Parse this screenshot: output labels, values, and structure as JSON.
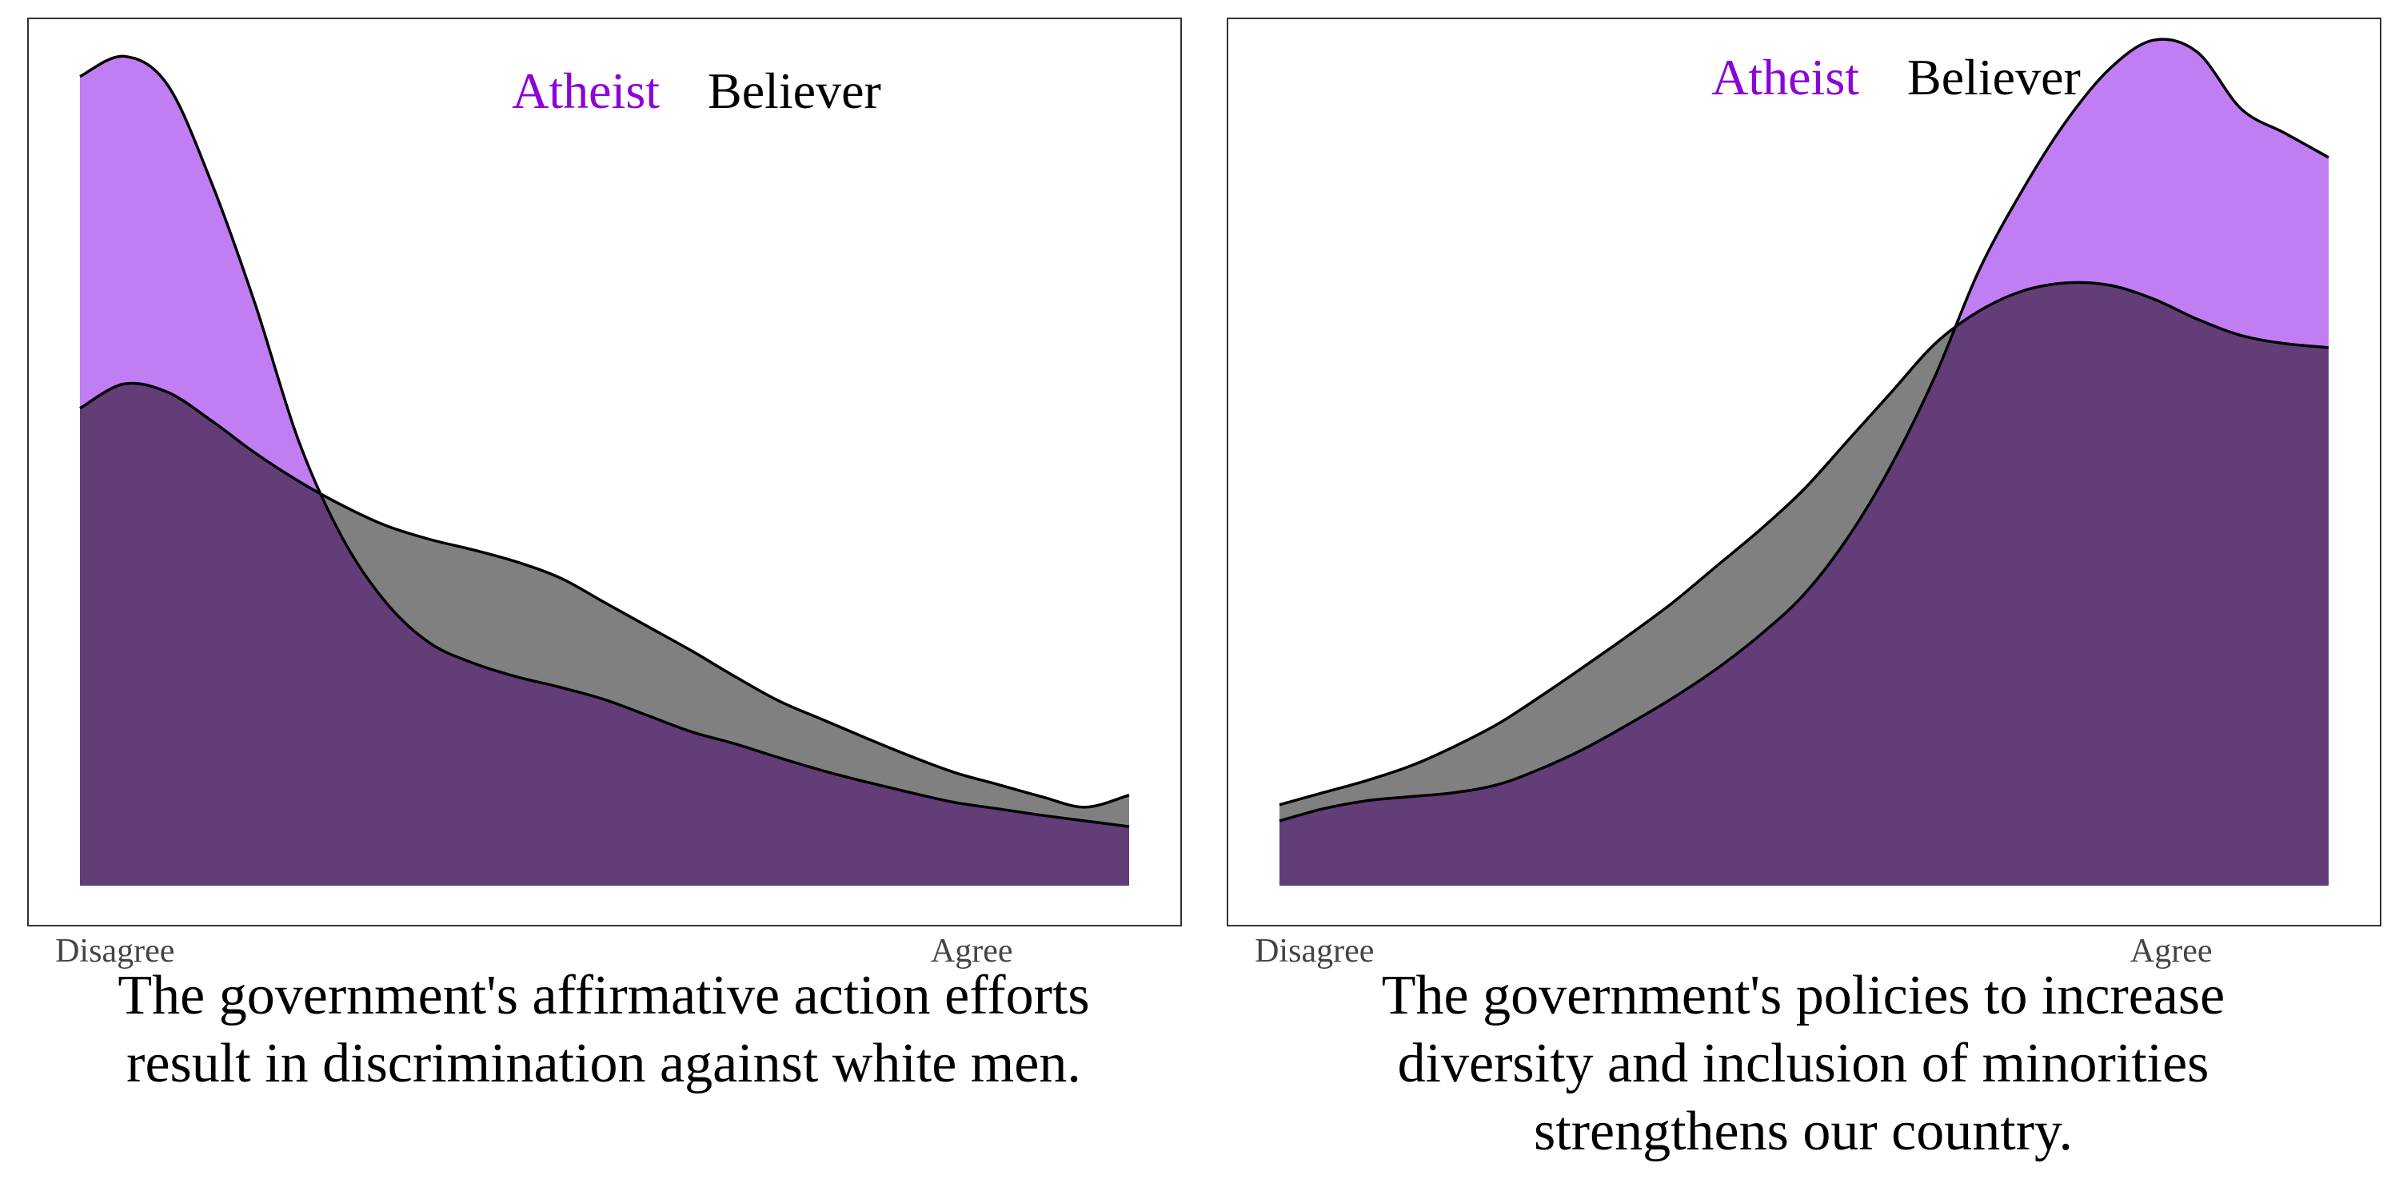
{
  "colors": {
    "atheist_fill": "#c17ef3",
    "believer_fill": "#808080",
    "overlap_fill": "#623d78",
    "atheist_text": "#8a05d6",
    "believer_text": "#000000",
    "outline": "#000000",
    "tick_text": "#444444"
  },
  "chart_data": [
    {
      "type": "area",
      "title": "The government's affirmative action efforts result in discrimination against white men.",
      "title_lines": [
        "The government's affirmative action efforts",
        "result in discrimination against white men."
      ],
      "xlabel": "",
      "ylabel": "",
      "xlim": [
        1,
        7
      ],
      "ylim": [
        0,
        1.06
      ],
      "tick_labels": [
        "Disagree",
        "Agree"
      ],
      "tick_values": [
        1.2,
        6.1
      ],
      "legend": [
        "Atheist",
        "Believer"
      ],
      "legend_position": "top-center",
      "grid": false,
      "x": [
        1.0,
        1.25,
        1.5,
        1.75,
        2.0,
        2.25,
        2.5,
        2.75,
        3.0,
        3.25,
        3.5,
        3.75,
        4.0,
        4.25,
        4.5,
        4.75,
        5.0,
        5.25,
        5.5,
        5.75,
        6.0,
        6.25,
        6.5,
        6.75,
        7.0
      ],
      "series": [
        {
          "name": "Atheist",
          "values": [
            1.0,
            1.025,
            0.99,
            0.87,
            0.72,
            0.55,
            0.43,
            0.35,
            0.3,
            0.275,
            0.258,
            0.245,
            0.23,
            0.21,
            0.19,
            0.175,
            0.158,
            0.142,
            0.128,
            0.115,
            0.103,
            0.095,
            0.087,
            0.08,
            0.073
          ]
        },
        {
          "name": "Believer",
          "values": [
            0.59,
            0.62,
            0.61,
            0.575,
            0.535,
            0.5,
            0.47,
            0.445,
            0.428,
            0.415,
            0.4,
            0.38,
            0.35,
            0.32,
            0.29,
            0.258,
            0.228,
            0.205,
            0.182,
            0.16,
            0.14,
            0.125,
            0.11,
            0.097,
            0.112
          ]
        }
      ]
    },
    {
      "type": "area",
      "title": "The government's policies to increase diversity and inclusion of minorities strengthens our country.",
      "title_lines": [
        "The government's policies to increase",
        "diversity and inclusion of minorities",
        "strengthens our country."
      ],
      "xlabel": "",
      "ylabel": "",
      "xlim": [
        1,
        7
      ],
      "ylim": [
        0,
        1.06
      ],
      "tick_labels": [
        "Disagree",
        "Agree"
      ],
      "tick_values": [
        1.2,
        6.1
      ],
      "legend": [
        "Atheist",
        "Believer"
      ],
      "legend_position": "top-center",
      "grid": false,
      "x": [
        1.0,
        1.25,
        1.5,
        1.75,
        2.0,
        2.25,
        2.5,
        2.75,
        3.0,
        3.25,
        3.5,
        3.75,
        4.0,
        4.25,
        4.5,
        4.75,
        5.0,
        5.25,
        5.5,
        5.75,
        6.0,
        6.25,
        6.5,
        6.75,
        7.0
      ],
      "series": [
        {
          "name": "Atheist",
          "values": [
            0.08,
            0.095,
            0.105,
            0.11,
            0.115,
            0.125,
            0.145,
            0.17,
            0.2,
            0.232,
            0.268,
            0.31,
            0.36,
            0.43,
            0.52,
            0.63,
            0.76,
            0.86,
            0.945,
            1.01,
            1.045,
            1.03,
            0.96,
            0.93,
            0.9
          ]
        },
        {
          "name": "Believer",
          "values": [
            0.1,
            0.115,
            0.13,
            0.148,
            0.172,
            0.2,
            0.235,
            0.272,
            0.31,
            0.35,
            0.395,
            0.44,
            0.49,
            0.55,
            0.61,
            0.67,
            0.71,
            0.735,
            0.745,
            0.742,
            0.725,
            0.7,
            0.68,
            0.67,
            0.665
          ]
        }
      ]
    }
  ]
}
